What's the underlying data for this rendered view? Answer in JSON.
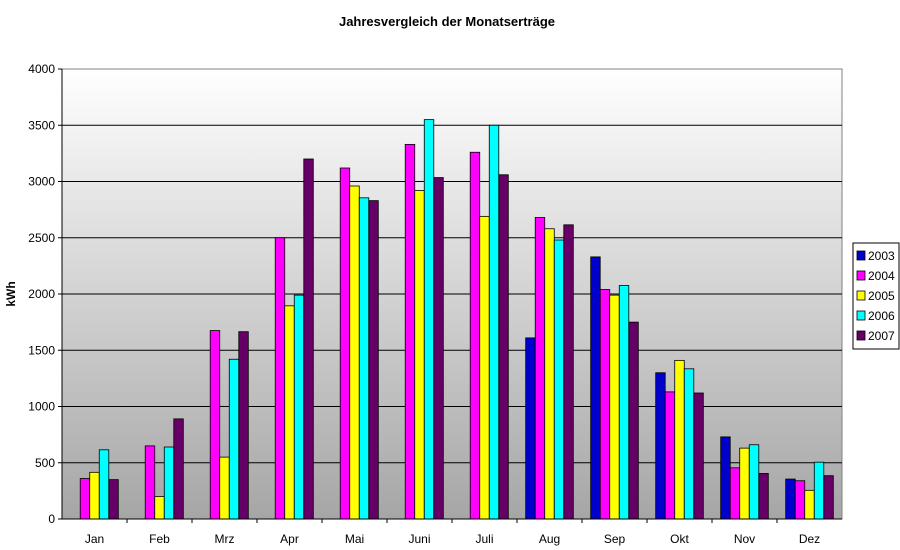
{
  "chart_data": {
    "type": "bar",
    "title": "Jahresvergleich der Monatserträge",
    "xlabel": "",
    "ylabel": "kWh",
    "ylim": [
      0,
      4000
    ],
    "yticks": [
      0,
      500,
      1000,
      1500,
      2000,
      2500,
      3000,
      3500,
      4000
    ],
    "grid": true,
    "legend_position": "right",
    "categories": [
      "Jan",
      "Feb",
      "Mrz",
      "Apr",
      "Mai",
      "Juni",
      "Juli",
      "Aug",
      "Sep",
      "Okt",
      "Nov",
      "Dez"
    ],
    "series": [
      {
        "name": "2003",
        "color": "#0000cc",
        "values": [
          null,
          null,
          null,
          null,
          null,
          null,
          null,
          1610,
          2330,
          1300,
          730,
          355
        ]
      },
      {
        "name": "2004",
        "color": "#ff00ff",
        "values": [
          360,
          650,
          1675,
          2500,
          3120,
          3330,
          3260,
          2680,
          2040,
          1130,
          455,
          340
        ]
      },
      {
        "name": "2005",
        "color": "#ffff00",
        "values": [
          415,
          200,
          550,
          1895,
          2960,
          2920,
          2690,
          2580,
          1990,
          1410,
          630,
          255
        ]
      },
      {
        "name": "2006",
        "color": "#00ffff",
        "values": [
          615,
          640,
          1420,
          1990,
          2855,
          3550,
          3500,
          2480,
          2075,
          1335,
          660,
          505
        ]
      },
      {
        "name": "2007",
        "color": "#660066",
        "values": [
          350,
          890,
          1665,
          3200,
          2830,
          3035,
          3060,
          2615,
          1750,
          1120,
          405,
          385
        ]
      }
    ]
  }
}
